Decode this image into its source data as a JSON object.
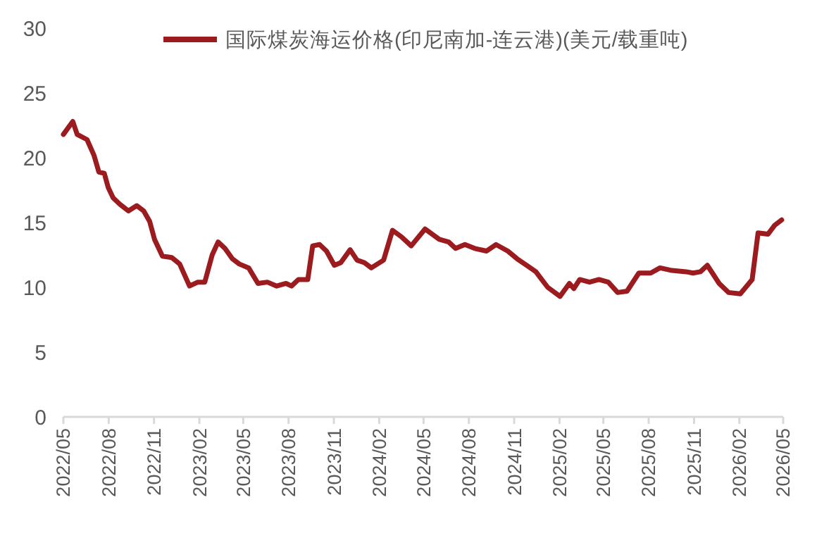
{
  "chart_data": {
    "type": "line",
    "xlim": [
      "2022-05",
      "2026-05"
    ],
    "xticks": [
      {
        "value": "2022-05",
        "label": "2022/05"
      },
      {
        "value": "2022-08",
        "label": "2022/08"
      },
      {
        "value": "2022-11",
        "label": "2022/11"
      },
      {
        "value": "2023-02",
        "label": "2023/02"
      },
      {
        "value": "2023-05",
        "label": "2023/05"
      },
      {
        "value": "2023-08",
        "label": "2023/08"
      },
      {
        "value": "2023-11",
        "label": "2023/11"
      },
      {
        "value": "2024-02",
        "label": "2024/02"
      },
      {
        "value": "2024-05",
        "label": "2024/05"
      },
      {
        "value": "2024-08",
        "label": "2024/08"
      },
      {
        "value": "2024-11",
        "label": "2024/11"
      },
      {
        "value": "2025-02",
        "label": "2025/02"
      },
      {
        "value": "2025-05",
        "label": "2025/05"
      },
      {
        "value": "2025-08",
        "label": "2025/08"
      },
      {
        "value": "2025-11",
        "label": "2025/11"
      },
      {
        "value": "2026-02",
        "label": "2026/02"
      },
      {
        "value": "2026-05",
        "label": "2026/05"
      }
    ],
    "ylim": [
      0,
      30
    ],
    "yticks": [
      0,
      5,
      10,
      15,
      20,
      25,
      30
    ],
    "grid": false,
    "legend": "top right",
    "line_style": "solid",
    "marker": "none",
    "series": [
      {
        "name": "国际煤炭海运价格(印尼南加-连云港)(美元/载重吨)",
        "color": "#9b1b1f",
        "x": [
          "2022-05-01",
          "2022-05-20",
          "2022-05-29",
          "2022-06-18",
          "2022-07-02",
          "2022-07-12",
          "2022-07-23",
          "2022-07-31",
          "2022-08-10",
          "2022-08-24",
          "2022-09-10",
          "2022-09-27",
          "2022-10-11",
          "2022-10-23",
          "2022-11-02",
          "2022-11-18",
          "2022-12-07",
          "2022-12-23",
          "2023-01-12",
          "2023-01-29",
          "2023-02-12",
          "2023-02-27",
          "2023-03-11",
          "2023-03-25",
          "2023-04-09",
          "2023-04-23",
          "2023-05-12",
          "2023-05-31",
          "2023-06-19",
          "2023-07-08",
          "2023-07-27",
          "2023-08-07",
          "2023-08-21",
          "2023-09-09",
          "2023-09-19",
          "2023-10-03",
          "2023-10-17",
          "2023-11-02",
          "2023-11-15",
          "2023-12-04",
          "2023-12-18",
          "2024-01-02",
          "2024-01-16",
          "2024-02-10",
          "2024-02-28",
          "2024-03-17",
          "2024-04-06",
          "2024-05-04",
          "2024-06-02",
          "2024-06-21",
          "2024-07-05",
          "2024-07-24",
          "2024-08-13",
          "2024-09-06",
          "2024-09-25",
          "2024-10-19",
          "2024-11-07",
          "2024-11-26",
          "2024-12-15",
          "2025-01-08",
          "2025-02-02",
          "2025-02-21",
          "2025-03-02",
          "2025-03-14",
          "2025-04-03",
          "2025-04-22",
          "2025-05-11",
          "2025-05-30",
          "2025-06-18",
          "2025-07-12",
          "2025-08-05",
          "2025-08-24",
          "2025-09-17",
          "2025-10-16",
          "2025-10-30",
          "2025-11-14",
          "2025-11-28",
          "2025-12-22",
          "2026-01-10",
          "2026-02-03",
          "2026-02-27",
          "2026-03-11",
          "2026-03-31",
          "2026-04-14",
          "2026-04-28"
        ],
        "values": [
          21.8,
          22.8,
          21.8,
          21.4,
          20.2,
          18.9,
          18.8,
          17.7,
          16.9,
          16.4,
          15.9,
          16.3,
          15.9,
          15.1,
          13.7,
          12.4,
          12.3,
          11.8,
          10.1,
          10.4,
          10.4,
          12.5,
          13.5,
          13.0,
          12.2,
          11.8,
          11.5,
          10.3,
          10.4,
          10.1,
          10.3,
          10.1,
          10.6,
          10.6,
          13.2,
          13.3,
          12.8,
          11.7,
          11.9,
          12.9,
          12.1,
          11.9,
          11.5,
          12.1,
          14.4,
          13.9,
          13.2,
          14.5,
          13.7,
          13.5,
          13.0,
          13.3,
          13.0,
          12.8,
          13.3,
          12.8,
          12.2,
          11.7,
          11.2,
          10.0,
          9.3,
          10.3,
          9.9,
          10.6,
          10.4,
          10.6,
          10.4,
          9.6,
          9.7,
          11.1,
          11.1,
          11.5,
          11.3,
          11.2,
          11.1,
          11.2,
          11.7,
          10.3,
          9.6,
          9.5,
          10.6,
          14.2,
          14.1,
          14.8,
          15.2
        ]
      }
    ]
  }
}
